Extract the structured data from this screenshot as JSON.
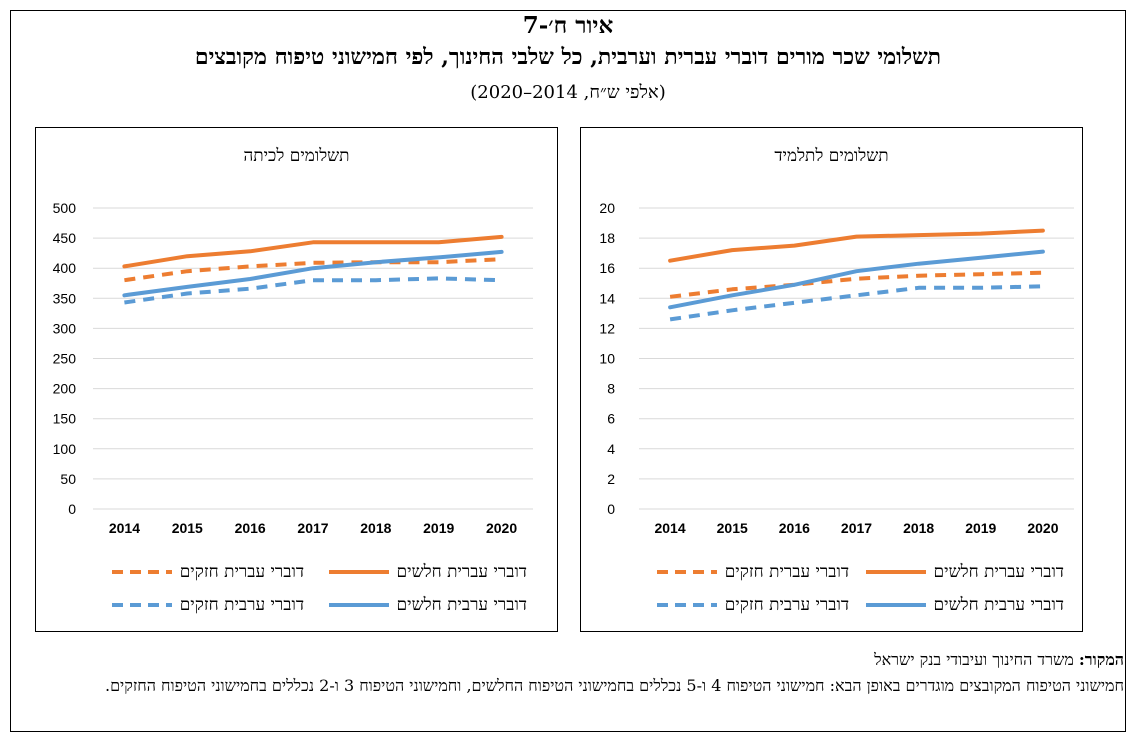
{
  "figure": {
    "label": "איור ח׳-7",
    "title": "תשלומי שכר מורים דוברי עברית וערבית, כל שלבי החינוך, לפי חמישוני טיפוח מקובצים",
    "subtitle": "(אלפי ש״ח, 2014–2020)"
  },
  "source_label": "המקור:",
  "source_text": "משרד החינוך ועיבודי בנק ישראל",
  "note": "חמישוני הטיפוח המקובצים מוגדרים באופן הבא: חמישוני הטיפוח 4 ו-5 נכללים בחמישוני הטיפוח החלשים, וחמישוני הטיפוח 3 ו-2 נכללים בחמישוני הטיפוח החזקים.",
  "colors": {
    "orange": "#ED7D31",
    "blue": "#5B9BD5",
    "grid": "#d9d9d9"
  },
  "chart_data": [
    {
      "type": "line",
      "title": "תשלומים לתלמיד",
      "x": [
        "2014",
        "2015",
        "2016",
        "2017",
        "2018",
        "2019",
        "2020"
      ],
      "ylim": [
        0,
        20
      ],
      "yticks": [
        "0",
        "2",
        "4",
        "6",
        "8",
        "10",
        "12",
        "14",
        "16",
        "18",
        "20"
      ],
      "grid": true,
      "legend_position": "bottom",
      "series": [
        {
          "name": "דוברי עברית חלשים",
          "color": "#ED7D31",
          "dashed": false,
          "values": [
            16.5,
            17.2,
            17.5,
            18.1,
            18.2,
            18.3,
            18.5
          ]
        },
        {
          "name": "דוברי עברית חזקים",
          "color": "#ED7D31",
          "dashed": true,
          "values": [
            14.1,
            14.6,
            14.9,
            15.3,
            15.5,
            15.6,
            15.7
          ]
        },
        {
          "name": "דוברי ערבית חלשים",
          "color": "#5B9BD5",
          "dashed": false,
          "values": [
            13.4,
            14.2,
            14.9,
            15.8,
            16.3,
            16.7,
            17.1
          ]
        },
        {
          "name": "דוברי ערבית חזקים",
          "color": "#5B9BD5",
          "dashed": true,
          "values": [
            12.6,
            13.2,
            13.7,
            14.2,
            14.7,
            14.7,
            14.8
          ]
        }
      ]
    },
    {
      "type": "line",
      "title": "תשלומים לכיתה",
      "x": [
        "2014",
        "2015",
        "2016",
        "2017",
        "2018",
        "2019",
        "2020"
      ],
      "ylim": [
        0,
        500
      ],
      "yticks": [
        "0",
        "50",
        "100",
        "150",
        "200",
        "250",
        "300",
        "350",
        "400",
        "450",
        "500"
      ],
      "grid": true,
      "legend_position": "bottom",
      "series": [
        {
          "name": "דוברי עברית חלשים",
          "color": "#ED7D31",
          "dashed": false,
          "values": [
            403,
            420,
            428,
            443,
            443,
            443,
            452
          ]
        },
        {
          "name": "דוברי עברית חזקים",
          "color": "#ED7D31",
          "dashed": true,
          "values": [
            380,
            395,
            403,
            409,
            410,
            410,
            415
          ]
        },
        {
          "name": "דוברי ערבית חלשים",
          "color": "#5B9BD5",
          "dashed": false,
          "values": [
            355,
            369,
            382,
            400,
            410,
            418,
            427
          ]
        },
        {
          "name": "דוברי ערבית חזקים",
          "color": "#5B9BD5",
          "dashed": true,
          "values": [
            343,
            358,
            366,
            380,
            380,
            383,
            380
          ]
        }
      ]
    }
  ]
}
